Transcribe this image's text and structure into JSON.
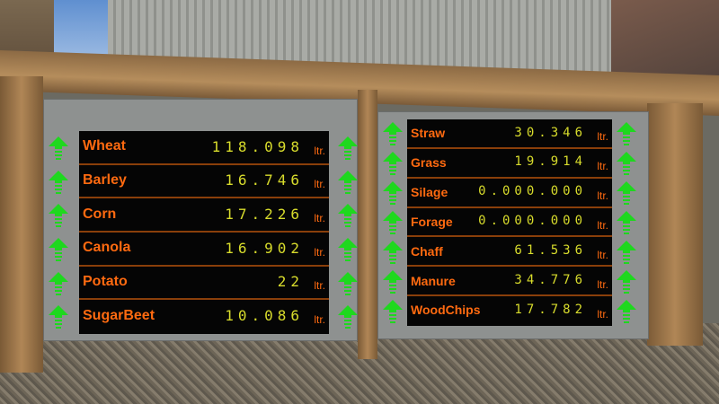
{
  "unit": "ltr.",
  "colors": {
    "label": "#ff6a10",
    "value": "#d8dc2c",
    "arrow": "#1ed81e",
    "display": "#050505"
  },
  "arrow_icon": "green-up-arrow-icon",
  "left_board": {
    "rows": [
      {
        "label": "Wheat",
        "value": "118.098"
      },
      {
        "label": "Barley",
        "value": "16.746"
      },
      {
        "label": "Corn",
        "value": "17.226"
      },
      {
        "label": "Canola",
        "value": "16.902"
      },
      {
        "label": "Potato",
        "value": "22"
      },
      {
        "label": "SugarBeet",
        "value": "10.086"
      }
    ]
  },
  "right_board": {
    "rows": [
      {
        "label": "Straw",
        "value": "30.346"
      },
      {
        "label": "Grass",
        "value": "19.914"
      },
      {
        "label": "Silage",
        "value": "0.000.000"
      },
      {
        "label": "Forage",
        "value": "0.000.000"
      },
      {
        "label": "Chaff",
        "value": "61.536"
      },
      {
        "label": "Manure",
        "value": "34.776"
      },
      {
        "label": "WoodChips",
        "value": "17.782"
      }
    ]
  }
}
